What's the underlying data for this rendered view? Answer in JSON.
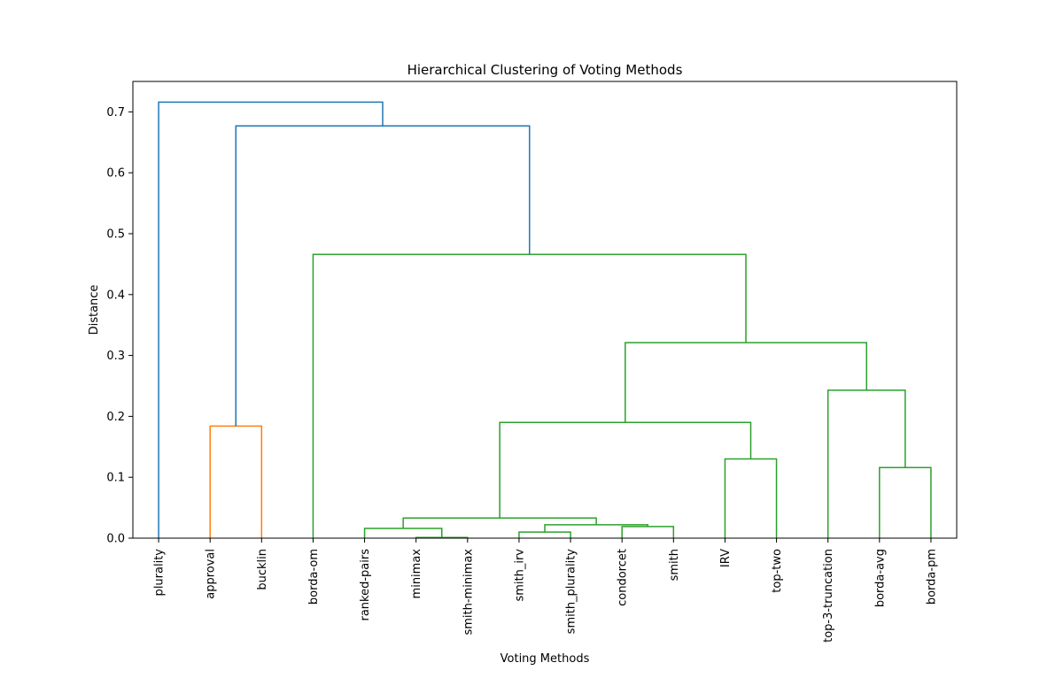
{
  "chart_data": {
    "type": "dendrogram",
    "title": "Hierarchical Clustering of Voting Methods",
    "xlabel": "Voting Methods",
    "ylabel": "Distance",
    "ylim": [
      0,
      0.75
    ],
    "yticks": [
      0.0,
      0.1,
      0.2,
      0.3,
      0.4,
      0.5,
      0.6,
      0.7
    ],
    "grid": false,
    "leaves": [
      "plurality",
      "approval",
      "bucklin",
      "borda-om",
      "ranked-pairs",
      "minimax",
      "smith-minimax",
      "smith_irv",
      "smith_plurality",
      "condorcet",
      "smith",
      "IRV",
      "top-two",
      "top-3-truncation",
      "borda-avg",
      "borda-pm"
    ],
    "colors": {
      "blue": "#1f77b4",
      "orange": "#ff7f0e",
      "green": "#2ca02c"
    },
    "merges": [
      {
        "left": "minimax",
        "right": "smith-minimax",
        "height": 0.001,
        "color": "green"
      },
      {
        "left": "smith_irv",
        "right": "smith_plurality",
        "height": 0.01,
        "color": "green"
      },
      {
        "left": "ranked-pairs",
        "right": "minimax+smith-minimax",
        "height": 0.016,
        "color": "green"
      },
      {
        "left": "condorcet",
        "right": "smith",
        "height": 0.019,
        "color": "green"
      },
      {
        "left": "smith_irv+smith_plurality",
        "right": "condorcet+smith",
        "height": 0.022,
        "color": "green"
      },
      {
        "left": "ranked-pairs group",
        "right": "smith_irv..smith group",
        "height": 0.033,
        "color": "green"
      },
      {
        "left": "borda-avg",
        "right": "borda-pm",
        "height": 0.116,
        "color": "green"
      },
      {
        "left": "IRV",
        "right": "top-two",
        "height": 0.13,
        "color": "green"
      },
      {
        "left": "approval",
        "right": "bucklin",
        "height": 0.184,
        "color": "orange"
      },
      {
        "left": "condorcet-family",
        "right": "IRV+top-two",
        "height": 0.19,
        "color": "green"
      },
      {
        "left": "top-3-truncation",
        "right": "borda-avg+borda-pm",
        "height": 0.243,
        "color": "green"
      },
      {
        "left": "left subtree",
        "right": "right subtree",
        "height": 0.321,
        "color": "green"
      },
      {
        "left": "borda-om",
        "right": "green cluster",
        "height": 0.466,
        "color": "green"
      },
      {
        "left": "approval+bucklin",
        "right": "borda-om cluster",
        "height": 0.677,
        "color": "blue"
      },
      {
        "left": "plurality",
        "right": "rest",
        "height": 0.716,
        "color": "blue"
      }
    ]
  }
}
